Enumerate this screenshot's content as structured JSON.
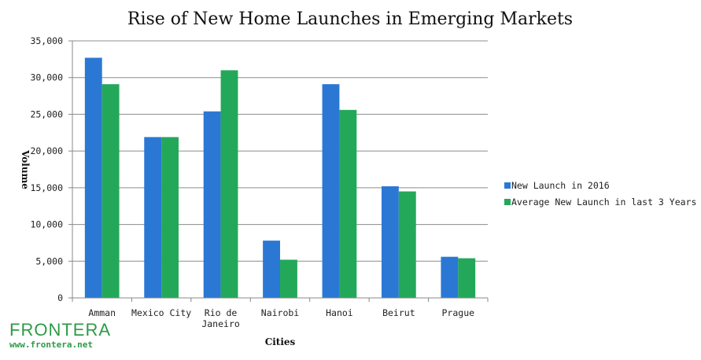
{
  "chart_data": {
    "type": "bar",
    "title": "Rise of New Home Launches in Emerging Markets",
    "xlabel": "Cities",
    "ylabel": "Volume",
    "ylim": [
      0,
      35000
    ],
    "yticks": [
      "0",
      "5,000",
      "10,000",
      "15,000",
      "20,000",
      "25,000",
      "30,000",
      "35,000"
    ],
    "ytick_values": [
      0,
      5000,
      10000,
      15000,
      20000,
      25000,
      30000,
      35000
    ],
    "categories": [
      "Amman",
      "Mexico City",
      "Rio de Janeiro",
      "Nairobi",
      "Hanoi",
      "Beirut",
      "Prague"
    ],
    "category_lines": [
      [
        "Amman"
      ],
      [
        "Mexico City"
      ],
      [
        "Rio de",
        "Janeiro"
      ],
      [
        "Nairobi"
      ],
      [
        "Hanoi"
      ],
      [
        "Beirut"
      ],
      [
        "Prague"
      ]
    ],
    "series": [
      {
        "name": "New Launch in 2016",
        "color": "#2b78d4",
        "values": [
          32700,
          21900,
          25400,
          7800,
          29100,
          15200,
          5600
        ]
      },
      {
        "name": "Average New Launch in last 3 Years",
        "color": "#23a85a",
        "values": [
          29100,
          21900,
          31000,
          5200,
          25600,
          14500,
          5400
        ]
      }
    ],
    "grid": true,
    "legend_position": "right"
  },
  "logo": {
    "name": "FRONTERA",
    "url": "www.frontera.net"
  }
}
